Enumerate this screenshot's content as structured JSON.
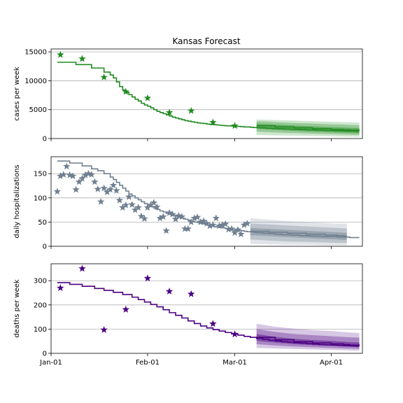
{
  "figure": {
    "title": "Kansas Forecast"
  },
  "x_tick_labels": [
    "Jan-01",
    "Feb-01",
    "Mar-01",
    "Apr-01"
  ],
  "chart_data": [
    {
      "type": "line",
      "name": "cases",
      "ylabel": "cases per week",
      "ylim": [
        0,
        15500
      ],
      "yticks": [
        0,
        5000,
        10000,
        15000
      ],
      "xlim": [
        0,
        100
      ],
      "xticks": [
        0,
        31,
        59,
        90
      ],
      "grid": "y",
      "colors": {
        "line": "#228b22",
        "band": "#228b22",
        "markers": "#228b22"
      },
      "model_line": {
        "x": [
          2,
          8,
          13,
          17,
          19,
          20,
          21,
          22,
          23,
          24,
          25,
          26,
          27,
          28,
          29,
          30,
          31,
          32,
          33,
          34,
          35,
          36,
          37,
          38,
          39,
          40,
          41,
          42,
          43,
          44,
          45,
          46,
          47,
          48,
          49,
          50,
          51,
          52,
          53,
          54,
          55,
          56,
          57,
          58,
          59,
          60,
          61,
          62,
          63,
          64,
          65,
          66,
          67,
          68,
          69,
          70,
          71,
          72,
          73,
          74,
          75,
          76,
          77,
          78,
          79,
          80,
          81,
          82,
          83,
          84,
          85,
          86,
          87,
          88,
          89,
          90,
          91,
          92,
          93,
          94,
          95,
          96,
          97,
          98,
          99
        ],
        "y": [
          13200,
          12800,
          12200,
          11500,
          11000,
          10500,
          9800,
          9000,
          8400,
          8000,
          7600,
          7200,
          6800,
          6500,
          6100,
          5800,
          5600,
          5300,
          5000,
          4700,
          4500,
          4300,
          4100,
          3900,
          3700,
          3550,
          3400,
          3250,
          3100,
          3000,
          2900,
          2800,
          2700,
          2650,
          2600,
          2500,
          2450,
          2400,
          2350,
          2300,
          2250,
          2200,
          2200,
          2150,
          2100,
          2100,
          2050,
          2000,
          2000,
          1950,
          1900,
          1900,
          1850,
          1850,
          1800,
          1800,
          1750,
          1750,
          1700,
          1700,
          1650,
          1650,
          1600,
          1600,
          1600,
          1550,
          1550,
          1500,
          1500,
          1500,
          1450,
          1450,
          1450,
          1400,
          1400,
          1400,
          1350,
          1350,
          1350,
          1300,
          1300,
          1300,
          1300,
          1250,
          1250
        ]
      },
      "forecast_bands": {
        "x": [
          66,
          72,
          78,
          84,
          90,
          94,
          96,
          99
        ],
        "median": [
          2200,
          2000,
          1850,
          1700,
          1550,
          1500,
          1450,
          1400
        ],
        "inner": [
          [
            1700,
            2600
          ],
          [
            1500,
            2400
          ],
          [
            1350,
            2250
          ],
          [
            1200,
            2100
          ],
          [
            1100,
            1950
          ],
          [
            1000,
            1900
          ],
          [
            950,
            1850
          ],
          [
            900,
            1800
          ]
        ],
        "middle": [
          [
            1200,
            3000
          ],
          [
            1050,
            2850
          ],
          [
            950,
            2700
          ],
          [
            850,
            2600
          ],
          [
            750,
            2450
          ],
          [
            700,
            2400
          ],
          [
            650,
            2350
          ],
          [
            600,
            2300
          ]
        ],
        "outer": [
          [
            600,
            3300
          ],
          [
            550,
            3200
          ],
          [
            500,
            3100
          ],
          [
            450,
            3000
          ],
          [
            400,
            2900
          ],
          [
            350,
            2850
          ],
          [
            350,
            2800
          ],
          [
            300,
            2750
          ]
        ]
      },
      "observed": {
        "x": [
          3,
          10,
          17,
          24,
          31,
          38,
          45,
          52,
          59
        ],
        "y": [
          14500,
          13800,
          10600,
          8100,
          7000,
          4500,
          4800,
          2800,
          2200
        ]
      }
    },
    {
      "type": "line",
      "name": "hospitalizations",
      "ylabel": "daily hospitalizations",
      "ylim": [
        0,
        185
      ],
      "yticks": [
        0,
        50,
        100,
        150
      ],
      "xlim": [
        0,
        100
      ],
      "xticks": [
        0,
        31,
        59,
        90
      ],
      "grid": "y",
      "colors": {
        "line": "#708090",
        "band": "#708090",
        "markers": "#708090"
      },
      "model_line": {
        "x": [
          2,
          6,
          10,
          13,
          15,
          17,
          19,
          20,
          21,
          22,
          23,
          24,
          25,
          26,
          27,
          28,
          29,
          30,
          31,
          32,
          33,
          34,
          35,
          36,
          37,
          38,
          39,
          40,
          41,
          42,
          43,
          44,
          45,
          46,
          47,
          48,
          49,
          50,
          51,
          52,
          53,
          54,
          55,
          56,
          57,
          58,
          59,
          60,
          61,
          62,
          63,
          64,
          65,
          66,
          67,
          68,
          69,
          70,
          71,
          72,
          73,
          74,
          75,
          76,
          77,
          78,
          79,
          80,
          81,
          82,
          83,
          84,
          85,
          86,
          87,
          88,
          89,
          90,
          91,
          92,
          93,
          94,
          95,
          96,
          97,
          98,
          99
        ],
        "y": [
          176,
          172,
          166,
          160,
          156,
          150,
          143,
          138,
          132,
          126,
          120,
          114,
          108,
          104,
          100,
          96,
          92,
          88,
          85,
          82,
          79,
          76,
          73,
          71,
          68,
          66,
          64,
          62,
          60,
          58,
          56,
          54,
          52,
          50,
          49,
          47,
          46,
          44,
          43,
          41,
          40,
          39,
          38,
          37,
          35,
          34,
          33,
          33,
          32,
          31,
          30,
          30,
          29,
          28,
          28,
          27,
          27,
          26,
          26,
          25,
          25,
          24,
          24,
          24,
          23,
          23,
          23,
          22,
          22,
          22,
          21,
          21,
          21,
          21,
          20,
          20,
          20,
          20,
          20,
          19,
          19,
          19,
          19,
          18,
          18,
          18,
          18
        ]
      },
      "forecast_bands": {
        "x": [
          64,
          70,
          76,
          82,
          88,
          92,
          94,
          95
        ],
        "median": [
          31,
          29,
          27,
          25,
          23,
          22,
          21,
          21
        ],
        "inner": [
          [
            23,
            38
          ],
          [
            21,
            36
          ],
          [
            19,
            34
          ],
          [
            17,
            32
          ],
          [
            15,
            30
          ],
          [
            14,
            29
          ],
          [
            13,
            28
          ],
          [
            13,
            28
          ]
        ],
        "middle": [
          [
            14,
            47
          ],
          [
            12,
            45
          ],
          [
            10,
            43
          ],
          [
            9,
            41
          ],
          [
            8,
            39
          ],
          [
            7,
            38
          ],
          [
            7,
            37
          ],
          [
            7,
            37
          ]
        ],
        "outer": [
          [
            5,
            58
          ],
          [
            4,
            55
          ],
          [
            3,
            52
          ],
          [
            3,
            50
          ],
          [
            2,
            48
          ],
          [
            2,
            47
          ],
          [
            2,
            47
          ],
          [
            2,
            47
          ]
        ]
      },
      "observed": {
        "x": [
          2,
          3,
          4,
          5,
          6,
          7,
          8,
          9,
          10,
          11,
          12,
          13,
          14,
          15,
          16,
          17,
          18,
          19,
          20,
          21,
          22,
          23,
          24,
          25,
          26,
          27,
          28,
          29,
          30,
          31,
          32,
          33,
          34,
          35,
          36,
          37,
          38,
          39,
          40,
          41,
          42,
          43,
          44,
          45,
          46,
          47,
          48,
          49,
          50,
          51,
          52,
          53,
          54,
          55,
          56,
          57,
          58,
          59,
          60,
          61,
          62,
          63
        ],
        "y": [
          113,
          145,
          148,
          165,
          147,
          145,
          117,
          133,
          140,
          147,
          150,
          148,
          133,
          118,
          92,
          120,
          112,
          117,
          126,
          115,
          95,
          80,
          85,
          102,
          86,
          75,
          80,
          62,
          57,
          80,
          85,
          90,
          81,
          58,
          61,
          32,
          69,
          66,
          56,
          63,
          61,
          36,
          36,
          50,
          58,
          60,
          50,
          52,
          47,
          42,
          44,
          58,
          42,
          44,
          46,
          35,
          36,
          28,
          34,
          25,
          44,
          47
        ]
      }
    },
    {
      "type": "line",
      "name": "deaths",
      "ylabel": "deaths per week",
      "ylim": [
        0,
        370
      ],
      "yticks": [
        0,
        100,
        200,
        300
      ],
      "xlim": [
        0,
        100
      ],
      "xticks": [
        0,
        31,
        59,
        90
      ],
      "grid": "y",
      "colors": {
        "line": "#4b0082",
        "band": "#4b0082",
        "markers": "#4b0082"
      },
      "model_line": {
        "x": [
          2,
          6,
          10,
          14,
          17,
          20,
          23,
          26,
          28,
          30,
          32,
          34,
          36,
          38,
          40,
          42,
          44,
          46,
          48,
          50,
          52,
          54,
          56,
          58,
          60,
          62,
          64,
          66,
          68,
          70,
          72,
          74,
          76,
          78,
          80,
          82,
          84,
          86,
          88,
          90,
          92,
          94,
          96,
          98,
          99
        ],
        "y": [
          292,
          285,
          277,
          268,
          260,
          252,
          243,
          232,
          222,
          212,
          202,
          192,
          180,
          168,
          157,
          146,
          134,
          123,
          113,
          105,
          98,
          92,
          86,
          80,
          75,
          70,
          66,
          62,
          58,
          54,
          51,
          48,
          46,
          44,
          42,
          40,
          38,
          36,
          35,
          34,
          33,
          32,
          31,
          30,
          30
        ]
      },
      "forecast_bands": {
        "x": [
          66,
          72,
          78,
          84,
          90,
          94,
          96,
          99
        ],
        "median": [
          66,
          56,
          48,
          43,
          39,
          36,
          34,
          32
        ],
        "inner": [
          [
            52,
            80
          ],
          [
            44,
            68
          ],
          [
            38,
            60
          ],
          [
            34,
            55
          ],
          [
            31,
            51
          ],
          [
            28,
            48
          ],
          [
            27,
            46
          ],
          [
            25,
            45
          ]
        ],
        "middle": [
          [
            38,
            100
          ],
          [
            32,
            88
          ],
          [
            28,
            80
          ],
          [
            25,
            75
          ],
          [
            22,
            71
          ],
          [
            20,
            68
          ],
          [
            19,
            66
          ],
          [
            18,
            65
          ]
        ],
        "outer": [
          [
            22,
            122
          ],
          [
            20,
            110
          ],
          [
            18,
            102
          ],
          [
            16,
            96
          ],
          [
            14,
            92
          ],
          [
            13,
            88
          ],
          [
            12,
            86
          ],
          [
            11,
            84
          ]
        ]
      },
      "observed": {
        "x": [
          3,
          10,
          17,
          24,
          31,
          38,
          45,
          52,
          59
        ],
        "y": [
          270,
          350,
          97,
          181,
          310,
          256,
          245,
          122,
          79
        ]
      }
    }
  ]
}
